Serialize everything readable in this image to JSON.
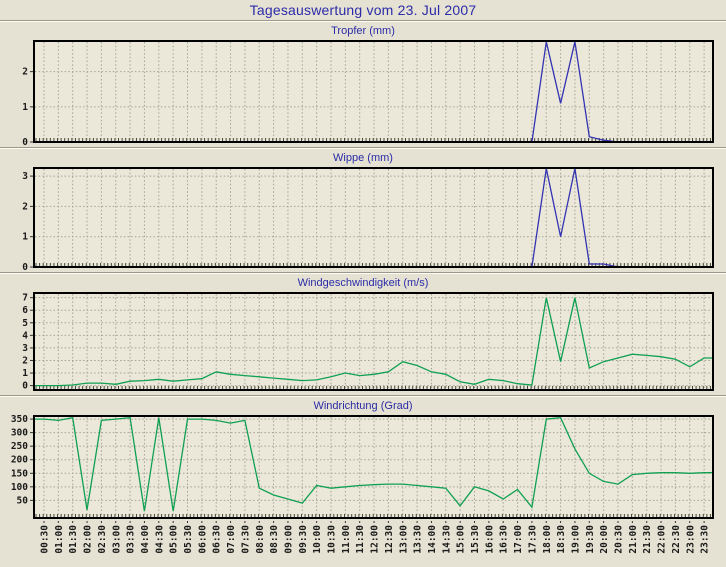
{
  "page": {
    "title": "Tagesauswertung vom 23. Jul 2007"
  },
  "colors": {
    "page_background": "#E5E2D3",
    "plot_background": "#EBE8D9",
    "title_blue": "#2B2BA8",
    "line_blue": "#3333B3",
    "line_green": "#0FA052",
    "grid": "#A3A296",
    "plot_border": "#000000",
    "tick_label": "#1A1A1A"
  },
  "x_labels": [
    "00:30",
    "01:00",
    "01:30",
    "02:00",
    "02:30",
    "03:00",
    "03:30",
    "04:00",
    "04:30",
    "05:00",
    "05:30",
    "06:00",
    "06:30",
    "07:00",
    "07:30",
    "08:00",
    "08:30",
    "09:00",
    "09:30",
    "10:00",
    "10:30",
    "11:00",
    "11:30",
    "12:00",
    "12:30",
    "13:00",
    "13:30",
    "14:00",
    "14:30",
    "15:00",
    "15:30",
    "16:00",
    "16:30",
    "17:00",
    "17:30",
    "18:00",
    "18:30",
    "19:00",
    "19:30",
    "20:00",
    "20:30",
    "21:00",
    "21:30",
    "22:00",
    "22:30",
    "23:00",
    "23:30"
  ],
  "chart_data": [
    {
      "type": "line",
      "title": "Tropfer (mm)",
      "ylabel": "mm",
      "line_color": "#3333B3",
      "y_ticks": [
        0,
        1,
        2
      ],
      "ylim": [
        0,
        2.9
      ],
      "grid": true,
      "values": [
        0,
        0,
        0,
        0,
        0,
        0,
        0,
        0,
        0,
        0,
        0,
        0,
        0,
        0,
        0,
        0,
        0,
        0,
        0,
        0,
        0,
        0,
        0,
        0,
        0,
        0,
        0,
        0,
        0,
        0,
        0,
        0,
        0,
        0,
        0,
        2.85,
        1.1,
        2.85,
        0.15,
        0.05,
        0,
        0,
        0,
        0,
        0,
        0,
        0
      ]
    },
    {
      "type": "line",
      "title": "Wippe (mm)",
      "ylabel": "mm",
      "line_color": "#3333B3",
      "y_ticks": [
        0,
        1,
        2,
        3
      ],
      "ylim": [
        0,
        3.3
      ],
      "grid": true,
      "values": [
        0,
        0,
        0,
        0,
        0,
        0,
        0,
        0,
        0,
        0,
        0,
        0,
        0,
        0,
        0,
        0,
        0,
        0,
        0,
        0,
        0,
        0,
        0,
        0,
        0,
        0,
        0,
        0,
        0,
        0,
        0,
        0,
        0,
        0,
        0,
        3.25,
        1.0,
        3.25,
        0.1,
        0.1,
        0,
        0,
        0,
        0,
        0,
        0,
        0
      ]
    },
    {
      "type": "line",
      "title": "Windgeschwindigkeit (m/s)",
      "ylabel": "m/s",
      "line_color": "#0FA052",
      "y_ticks": [
        0,
        1,
        2,
        3,
        4,
        5,
        6,
        7
      ],
      "ylim": [
        -0.35,
        7.45
      ],
      "grid": true,
      "values": [
        0,
        0,
        0.05,
        0.2,
        0.2,
        0.1,
        0.35,
        0.4,
        0.5,
        0.35,
        0.45,
        0.55,
        1.1,
        0.9,
        0.8,
        0.7,
        0.6,
        0.5,
        0.4,
        0.45,
        0.7,
        1.0,
        0.8,
        0.9,
        1.1,
        1.9,
        1.6,
        1.1,
        0.9,
        0.3,
        0.1,
        0.5,
        0.4,
        0.15,
        0.05,
        7.0,
        1.9,
        7.0,
        1.4,
        1.9,
        2.2,
        2.5,
        2.4,
        2.3,
        2.1,
        1.5,
        2.2
      ]
    },
    {
      "type": "line",
      "title": "Windrichtung (Grad)",
      "ylabel": "Grad",
      "line_color": "#0FA052",
      "y_ticks": [
        50,
        100,
        150,
        200,
        250,
        300,
        350
      ],
      "ylim": [
        -15,
        365
      ],
      "grid": true,
      "values": [
        350,
        345,
        355,
        15,
        345,
        350,
        355,
        10,
        355,
        10,
        350,
        350,
        345,
        335,
        345,
        95,
        70,
        55,
        40,
        105,
        95,
        100,
        105,
        108,
        110,
        110,
        105,
        100,
        95,
        30,
        100,
        85,
        55,
        90,
        25,
        350,
        355,
        240,
        150,
        120,
        110,
        145,
        150,
        152,
        152,
        150,
        152
      ]
    }
  ]
}
